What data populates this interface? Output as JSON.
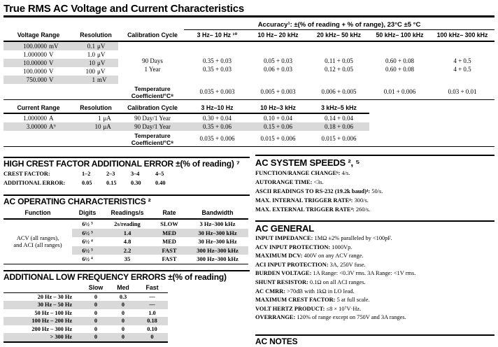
{
  "title": "True RMS AC Voltage and Current Characteristics",
  "voltage_table": {
    "accuracy_header": "Accuracy¹: ±(% of reading + % of range), 23°C ±5 °C",
    "headers": {
      "range": "Voltage Range",
      "resolution": "Resolution",
      "cal_cycle": "Calibration Cycle",
      "f1": "3 Hz– 10 Hz ¹⁰",
      "f2": "10 Hz– 20 kHz",
      "f3": "20 kHz– 50 kHz",
      "f4": "50 kHz– 100 kHz",
      "f5": "100 kHz– 300 kHz"
    },
    "ranges": [
      {
        "value": "100.0000",
        "unit": "mV",
        "res_value": "0.1",
        "res_unit": "μV"
      },
      {
        "value": "1.000000",
        "unit": "V",
        "res_value": "1.0",
        "res_unit": "μV"
      },
      {
        "value": "10.00000",
        "unit": "V",
        "res_value": "10",
        "res_unit": "μV"
      },
      {
        "value": "100.0000",
        "unit": "V",
        "res_value": "100",
        "res_unit": "μV"
      },
      {
        "value": "750.000",
        "unit": "V",
        "res_value": "1",
        "res_unit": "mV"
      }
    ],
    "cal_90": "90 Days",
    "cal_1yr": "1 Year",
    "acc_90": [
      "0.35 + 0.03",
      "0.05 + 0.03",
      "0.11 + 0.05",
      "0.60 + 0.08",
      "4 + 0.5"
    ],
    "acc_1yr": [
      "0.35 + 0.03",
      "0.06 + 0.03",
      "0.12 + 0.05",
      "0.60 + 0.08",
      "4 + 0.5"
    ],
    "temp_label_1": "Temperature",
    "temp_label_2": "Coefficient/°C⁸",
    "temp": [
      "0.035 + 0.003",
      "0.005 + 0.003",
      "0.006 + 0.005",
      "0.01 + 0.006",
      "0.03 + 0.01"
    ]
  },
  "current_table": {
    "headers": {
      "range": "Current Range",
      "resolution": "Resolution",
      "cal_cycle": "Calibration Cycle",
      "f1": "3 Hz–10 Hz",
      "f2": "10 Hz–3 kHz",
      "f3": "3 kHz–5 kHz"
    },
    "rows": [
      {
        "value": "1.000000",
        "unit": "A",
        "res_value": "1",
        "res_unit": "μA",
        "cal": "90 Day/1 Year",
        "a1": "0.30 + 0.04",
        "a2": "0.10 + 0.04",
        "a3": "0.14 + 0.04"
      },
      {
        "value": "3.00000",
        "unit": "A⁹",
        "res_value": "10",
        "res_unit": "μA",
        "cal": "90 Day/1 Year",
        "a1": "0.35 + 0.06",
        "a2": "0.15 + 0.06",
        "a3": "0.18 + 0.06"
      }
    ],
    "temp_label_1": "Temperature",
    "temp_label_2": "Coefficient/°C⁸",
    "temp": [
      "0.035 + 0.006",
      "0.015 + 0.006",
      "0.015 + 0.006"
    ]
  },
  "crest_factor": {
    "title": "HIGH CREST FACTOR ADDITIONAL ERROR ±(% of reading) ⁷",
    "row1_label": "CREST FACTOR:",
    "row1_values": [
      "1–2",
      "2–3",
      "3–4",
      "4–5"
    ],
    "row2_label": "ADDITIONAL ERROR:",
    "row2_values": [
      "0.05",
      "0.15",
      "0.30",
      "0.40"
    ]
  },
  "ac_operating": {
    "title": "AC OPERATING CHARACTERISTICS ²",
    "headers": [
      "Function",
      "Digits",
      "Readings/s",
      "Rate",
      "Bandwidth"
    ],
    "function_line_1": "ACV (all ranges),",
    "function_line_2": "and ACI (all ranges)",
    "rows": [
      {
        "digits": "6½ ³",
        "readings": "2s/reading",
        "rate": "SLOW",
        "bandwidth": "3 Hz–300 kHz"
      },
      {
        "digits": "6½ ³",
        "readings": "1.4",
        "rate": "MED",
        "bandwidth": "30 Hz–300 kHz"
      },
      {
        "digits": "6½ ⁴",
        "readings": "4.8",
        "rate": "MED",
        "bandwidth": "30 Hz–300 kHz"
      },
      {
        "digits": "6½ ³",
        "readings": "2.2",
        "rate": "FAST",
        "bandwidth": "300 Hz–300 kHz"
      },
      {
        "digits": "6½ ⁴",
        "readings": "35",
        "rate": "FAST",
        "bandwidth": "300 Hz–300 kHz"
      }
    ]
  },
  "low_freq_errors": {
    "title": "ADDITIONAL LOW FREQUENCY ERRORS ±(% of reading)",
    "headers": [
      "Slow",
      "Med",
      "Fast"
    ],
    "rows": [
      {
        "range": "20 Hz –  30 Hz",
        "slow": "0",
        "med": "0.3",
        "fast": "—"
      },
      {
        "range": "30 Hz –  50 Hz",
        "slow": "0",
        "med": "0",
        "fast": "—"
      },
      {
        "range": "50 Hz – 100 Hz",
        "slow": "0",
        "med": "0",
        "fast": "1.0"
      },
      {
        "range": "100 Hz – 200 Hz",
        "slow": "0",
        "med": "0",
        "fast": "0.18"
      },
      {
        "range": "200 Hz – 300 Hz",
        "slow": "0",
        "med": "0",
        "fast": "0.10"
      },
      {
        "range": "> 300 Hz",
        "slow": "0",
        "med": "0",
        "fast": "0"
      }
    ]
  },
  "ac_system_speeds": {
    "title": "AC SYSTEM SPEEDS ², ⁵",
    "items": [
      {
        "label": "FUNCTION/RANGE CHANGE⁶:",
        "value": " 4/s."
      },
      {
        "label": "AUTORANGE TIME:",
        "value": " <3s."
      },
      {
        "label": "ASCII READINGS TO RS-232 (19.2k baud)⁴:",
        "value": " 50/s."
      },
      {
        "label": "MAX. INTERNAL TRIGGER RATE⁴:",
        "value": " 300/s."
      },
      {
        "label": "MAX. EXTERNAL TRIGGER RATE⁴:",
        "value": " 260/s."
      }
    ]
  },
  "ac_general": {
    "title": "AC GENERAL",
    "items": [
      {
        "label": "INPUT IMPEDANCE:",
        "value": " 1MΩ ±2% paralleled by <100pF."
      },
      {
        "label": "ACV INPUT PROTECTION:",
        "value": " 1000Vp."
      },
      {
        "label": "MAXIMUM DCV:",
        "value": " 400V on any ACV range."
      },
      {
        "label": "ACI INPUT PROTECTION:",
        "value": " 3A, 250V fuse."
      },
      {
        "label": "BURDEN VOLTAGE:",
        "value": " 1A Range: <0.3V rms. 3A Range: <1V rms."
      },
      {
        "label": "SHUNT RESISTOR:",
        "value": " 0.1Ω on all ACI ranges."
      },
      {
        "label": "AC CMRR:",
        "value": " >70dB with 1kΩ in LO lead."
      },
      {
        "label": "MAXIMUM CREST FACTOR:",
        "value": " 5 at full scale."
      },
      {
        "label": "VOLT HERTZ PRODUCT:",
        "value": " ≤8 × 10⁷V·Hz."
      },
      {
        "label": "OVERRANGE:",
        "value": " 120% of range except on 750V and 3A ranges."
      }
    ]
  },
  "ac_notes": {
    "title": "AC NOTES"
  }
}
